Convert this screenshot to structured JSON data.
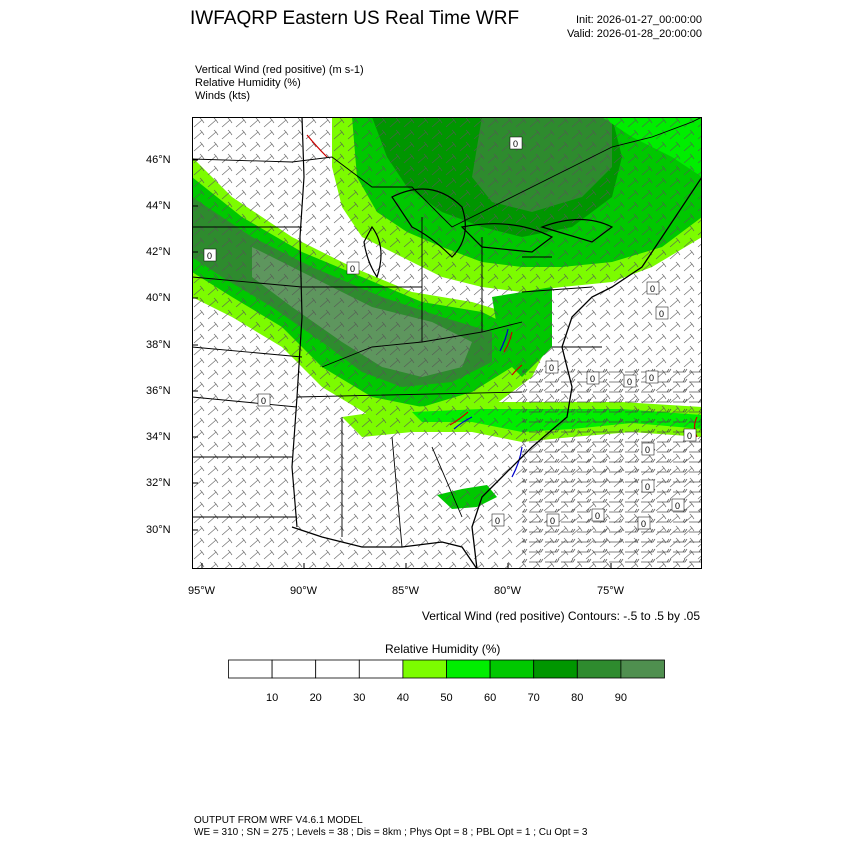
{
  "header": {
    "title": "IWFAQRP Eastern US Real Time WRF",
    "init": "Init: 2026-01-27_00:00:00",
    "valid": "Valid: 2026-01-28_20:00:00"
  },
  "variables": [
    "Vertical Wind (red positive)   (m s-1)",
    "Relative Humidity   (%)",
    "Winds   (kts)"
  ],
  "map": {
    "lat_labels": [
      "46°N",
      "44°N",
      "42°N",
      "40°N",
      "38°N",
      "36°N",
      "34°N",
      "32°N",
      "30°N"
    ],
    "lon_labels": [
      "95°W",
      "90°W",
      "85°W",
      "80°W",
      "75°W"
    ],
    "contour_labels": [
      "0",
      "0",
      "0",
      "0",
      "0",
      "0",
      "0",
      "0",
      "0",
      "0",
      "0",
      "0",
      "0",
      "0",
      "0",
      "0",
      "0",
      "0"
    ],
    "contour_note": "Vertical Wind (red positive) Contours: -.5 to .5 by .05"
  },
  "colorbar": {
    "title": "Relative Humidity   (%)",
    "ticks": [
      "10",
      "20",
      "30",
      "40",
      "50",
      "60",
      "70",
      "80",
      "90"
    ],
    "colors": [
      "#ffffff",
      "#ffffff",
      "#ffffff",
      "#ffffff",
      "#7cfc00",
      "#00ee00",
      "#00c800",
      "#009600",
      "#2e8b2e",
      "#4f8f4f"
    ]
  },
  "footer": {
    "line1": "OUTPUT FROM WRF V4.6.1 MODEL",
    "line2": "WE = 310 ; SN = 275 ; Levels = 38 ; Dis = 8km ; Phys Opt = 8 ; PBL Opt = 1 ; Cu Opt = 3"
  }
}
